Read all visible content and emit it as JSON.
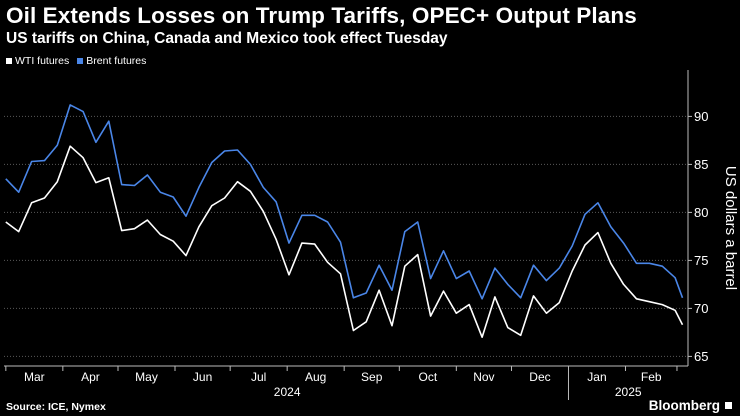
{
  "title": "Oil Extends Losses on Trump Tariffs, OPEC+ Output Plans",
  "subtitle": "US tariffs on China, Canada and Mexico took effect Tuesday",
  "legend": [
    {
      "label": "WTI futures",
      "color": "#ffffff"
    },
    {
      "label": "Brent futures",
      "color": "#4a86e8"
    }
  ],
  "source": "Source: ICE, Nymex",
  "brand": "Bloomberg",
  "chart_data": {
    "type": "line",
    "ylabel": "US dollars a barrel",
    "ylim": [
      64,
      94
    ],
    "yticks": [
      65,
      70,
      75,
      80,
      85,
      90
    ],
    "grid": "horizontal dotted",
    "legend_position": "top-left",
    "month_labels": [
      "Mar",
      "Apr",
      "May",
      "Jun",
      "Jul",
      "Aug",
      "Sep",
      "Oct",
      "Nov",
      "Dec",
      "Jan",
      "Feb"
    ],
    "year_labels": [
      "2024",
      "2025"
    ],
    "x": [
      "2024-03-01",
      "2024-03-08",
      "2024-03-15",
      "2024-03-22",
      "2024-03-29",
      "2024-04-05",
      "2024-04-12",
      "2024-04-19",
      "2024-04-26",
      "2024-05-03",
      "2024-05-10",
      "2024-05-17",
      "2024-05-24",
      "2024-05-31",
      "2024-06-07",
      "2024-06-14",
      "2024-06-21",
      "2024-06-28",
      "2024-07-05",
      "2024-07-12",
      "2024-07-19",
      "2024-07-26",
      "2024-08-02",
      "2024-08-09",
      "2024-08-16",
      "2024-08-23",
      "2024-08-30",
      "2024-09-06",
      "2024-09-13",
      "2024-09-20",
      "2024-09-27",
      "2024-10-04",
      "2024-10-11",
      "2024-10-18",
      "2024-10-25",
      "2024-11-01",
      "2024-11-08",
      "2024-11-15",
      "2024-11-22",
      "2024-11-29",
      "2024-12-06",
      "2024-12-13",
      "2024-12-20",
      "2024-12-27",
      "2025-01-03",
      "2025-01-10",
      "2025-01-17",
      "2025-01-24",
      "2025-01-31",
      "2025-02-07",
      "2025-02-14",
      "2025-02-21",
      "2025-02-28",
      "2025-03-04"
    ],
    "series": [
      {
        "name": "WTI futures",
        "color": "#ffffff",
        "values": [
          79.0,
          78.0,
          81.0,
          81.5,
          83.2,
          86.9,
          85.7,
          83.1,
          83.6,
          78.1,
          78.3,
          79.2,
          77.7,
          77.0,
          75.5,
          78.5,
          80.7,
          81.5,
          83.2,
          82.2,
          80.1,
          77.2,
          73.5,
          76.8,
          76.7,
          74.8,
          73.6,
          67.7,
          68.6,
          71.9,
          68.2,
          74.4,
          75.6,
          69.2,
          71.8,
          69.5,
          70.4,
          67.0,
          71.2,
          68.0,
          67.2,
          71.3,
          69.5,
          70.6,
          73.9,
          76.6,
          77.9,
          74.7,
          72.5,
          71.0,
          70.7,
          70.4,
          69.8,
          68.3
        ]
      },
      {
        "name": "Brent futures",
        "color": "#4a86e8",
        "values": [
          83.5,
          82.1,
          85.3,
          85.4,
          87.0,
          91.2,
          90.5,
          87.3,
          89.5,
          82.9,
          82.8,
          83.9,
          82.1,
          81.6,
          79.6,
          82.6,
          85.2,
          86.4,
          86.5,
          85.0,
          82.6,
          81.1,
          76.8,
          79.7,
          79.7,
          79.0,
          76.9,
          71.1,
          71.6,
          74.5,
          71.9,
          78.0,
          79.0,
          73.1,
          76.0,
          73.1,
          73.9,
          71.0,
          74.2,
          72.5,
          71.1,
          74.5,
          72.9,
          74.2,
          76.5,
          79.8,
          81.0,
          78.5,
          76.8,
          74.7,
          74.7,
          74.4,
          73.2,
          71.1
        ]
      }
    ]
  }
}
